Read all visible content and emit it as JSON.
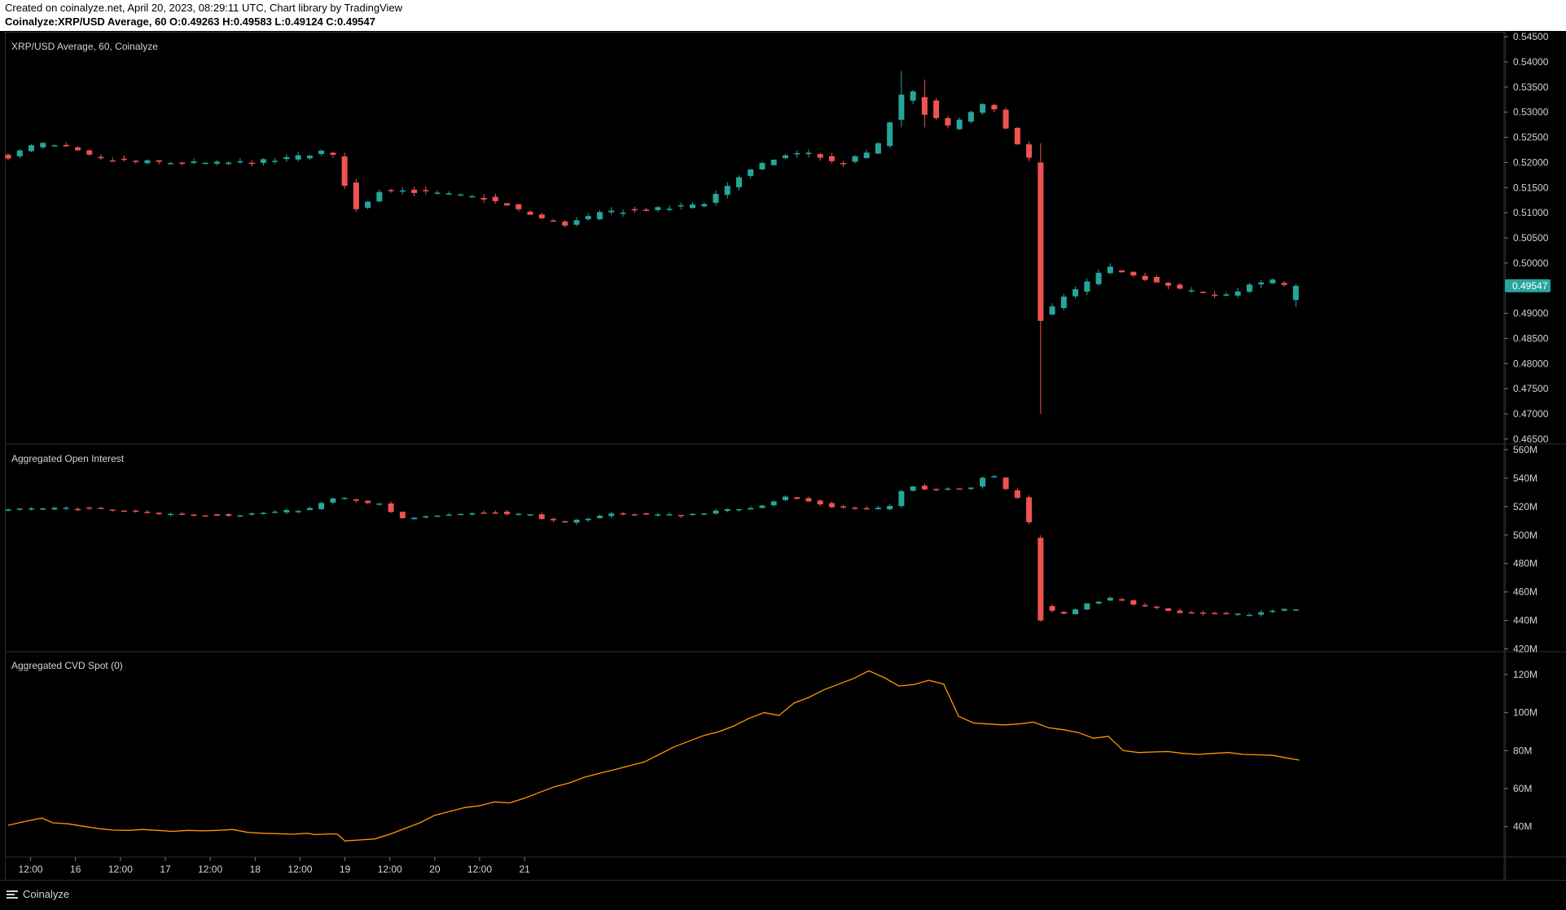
{
  "header": {
    "line1": "Created on coinalyze.net, April 20, 2023, 08:29:11 UTC, Chart library by TradingView",
    "line2": "Coinalyze:XRP/USD Average, 60 O:0.49263 H:0.49583 L:0.49124 C:0.49547"
  },
  "panes": {
    "price_title": "XRP/USD Average, 60, Coinalyze",
    "oi_title": "Aggregated Open Interest",
    "cvd_title": "Aggregated CVD Spot (0)"
  },
  "footer": {
    "brand": "Coinalyze"
  },
  "colors": {
    "up": "#26a69a",
    "down": "#ef5350",
    "cvd": "#ff9800",
    "grid": "#2a2e39",
    "bg": "#000000"
  },
  "chart_data": [
    {
      "type": "candlestick",
      "title": "XRP/USD Average, 60, Coinalyze",
      "ylim": [
        0.464,
        0.546
      ],
      "y_ticks": [
        "0.54500",
        "0.54000",
        "0.53500",
        "0.53000",
        "0.52500",
        "0.52000",
        "0.51500",
        "0.51000",
        "0.50500",
        "0.50000",
        "0.49000",
        "0.48500",
        "0.48000",
        "0.47500",
        "0.47000",
        "0.46500"
      ],
      "last_price_label": "0.49547",
      "ohlc_sample": [
        {
          "o": 0.521,
          "h": 0.5222,
          "l": 0.5205,
          "c": 0.5218
        },
        {
          "o": 0.5218,
          "h": 0.5235,
          "l": 0.5212,
          "c": 0.523
        },
        {
          "o": 0.523,
          "h": 0.5252,
          "l": 0.5222,
          "c": 0.524
        },
        {
          "o": 0.5108,
          "h": 0.5208,
          "l": 0.5082,
          "c": 0.52
        },
        {
          "o": 0.5005,
          "h": 0.503,
          "l": 0.4965,
          "c": 0.4975
        },
        {
          "o": 0.494,
          "h": 0.4955,
          "l": 0.4895,
          "c": 0.4917
        },
        {
          "o": 0.538,
          "h": 0.5395,
          "l": 0.531,
          "c": 0.5335
        },
        {
          "o": 0.531,
          "h": 0.533,
          "l": 0.522,
          "c": 0.523
        },
        {
          "o": 0.5205,
          "h": 0.523,
          "l": 0.47,
          "c": 0.4885
        },
        {
          "o": 0.4885,
          "h": 0.49,
          "l": 0.4855,
          "c": 0.488
        },
        {
          "o": 0.501,
          "h": 0.5025,
          "l": 0.498,
          "c": 0.4995
        },
        {
          "o": 0.49263,
          "h": 0.49583,
          "l": 0.49124,
          "c": 0.49547
        }
      ]
    },
    {
      "type": "candlestick",
      "title": "Aggregated Open Interest",
      "ylim": [
        418,
        564
      ],
      "y_ticks": [
        "560M",
        "540M",
        "520M",
        "500M",
        "480M",
        "460M",
        "440M",
        "420M"
      ]
    },
    {
      "type": "line",
      "title": "Aggregated CVD Spot (0)",
      "ylim": [
        24,
        132
      ],
      "y_ticks": [
        "120M",
        "100M",
        "80M",
        "60M",
        "40M"
      ],
      "x": [
        0,
        5,
        9,
        12,
        16,
        20,
        24,
        28,
        32,
        36,
        40,
        44,
        48,
        52,
        56,
        60,
        64,
        68,
        72,
        76,
        80,
        82,
        84,
        86,
        88,
        90,
        94,
        98,
        102,
        106,
        110,
        114,
        118,
        122,
        126,
        130,
        134,
        138,
        142,
        146,
        150,
        154,
        158,
        162,
        166,
        170,
        174,
        178,
        182,
        186,
        190,
        194,
        198,
        202,
        206,
        210,
        214,
        218,
        222,
        226,
        230,
        234,
        238,
        242,
        246,
        250,
        254,
        258,
        262,
        266,
        270,
        274,
        278,
        282,
        286,
        290,
        294,
        298,
        302,
        306,
        310,
        314,
        318,
        322,
        326,
        330,
        334,
        338,
        342,
        345
      ],
      "values": [
        40.7,
        43,
        44.5,
        42,
        41.5,
        40.2,
        39,
        38.2,
        38,
        38.5,
        38,
        37.5,
        38,
        37.8,
        38,
        38.5,
        37,
        36.5,
        36.3,
        36,
        36.5,
        35.8,
        36,
        36.2,
        36,
        32.5,
        33,
        33.5,
        36,
        39,
        42,
        46,
        48,
        50,
        51,
        53,
        52.5,
        55,
        58,
        61,
        63,
        66,
        68,
        70,
        72,
        74,
        78,
        82,
        85,
        88,
        90,
        93,
        97,
        100,
        98.5,
        105,
        108,
        112,
        115,
        118,
        122,
        118.5,
        114,
        114.7,
        117,
        115,
        98,
        94.5,
        94,
        93.5,
        94,
        95,
        92,
        91,
        89.5,
        86.5,
        87.5,
        80,
        79,
        79.3,
        79.5,
        78.5,
        78,
        78.5,
        79,
        78,
        77.8,
        77.5,
        76,
        75
      ]
    }
  ],
  "x_axis": {
    "labels": [
      "12:00",
      "16",
      "12:00",
      "17",
      "12:00",
      "18",
      "12:00",
      "19",
      "12:00",
      "20",
      "12:00",
      "21"
    ]
  }
}
